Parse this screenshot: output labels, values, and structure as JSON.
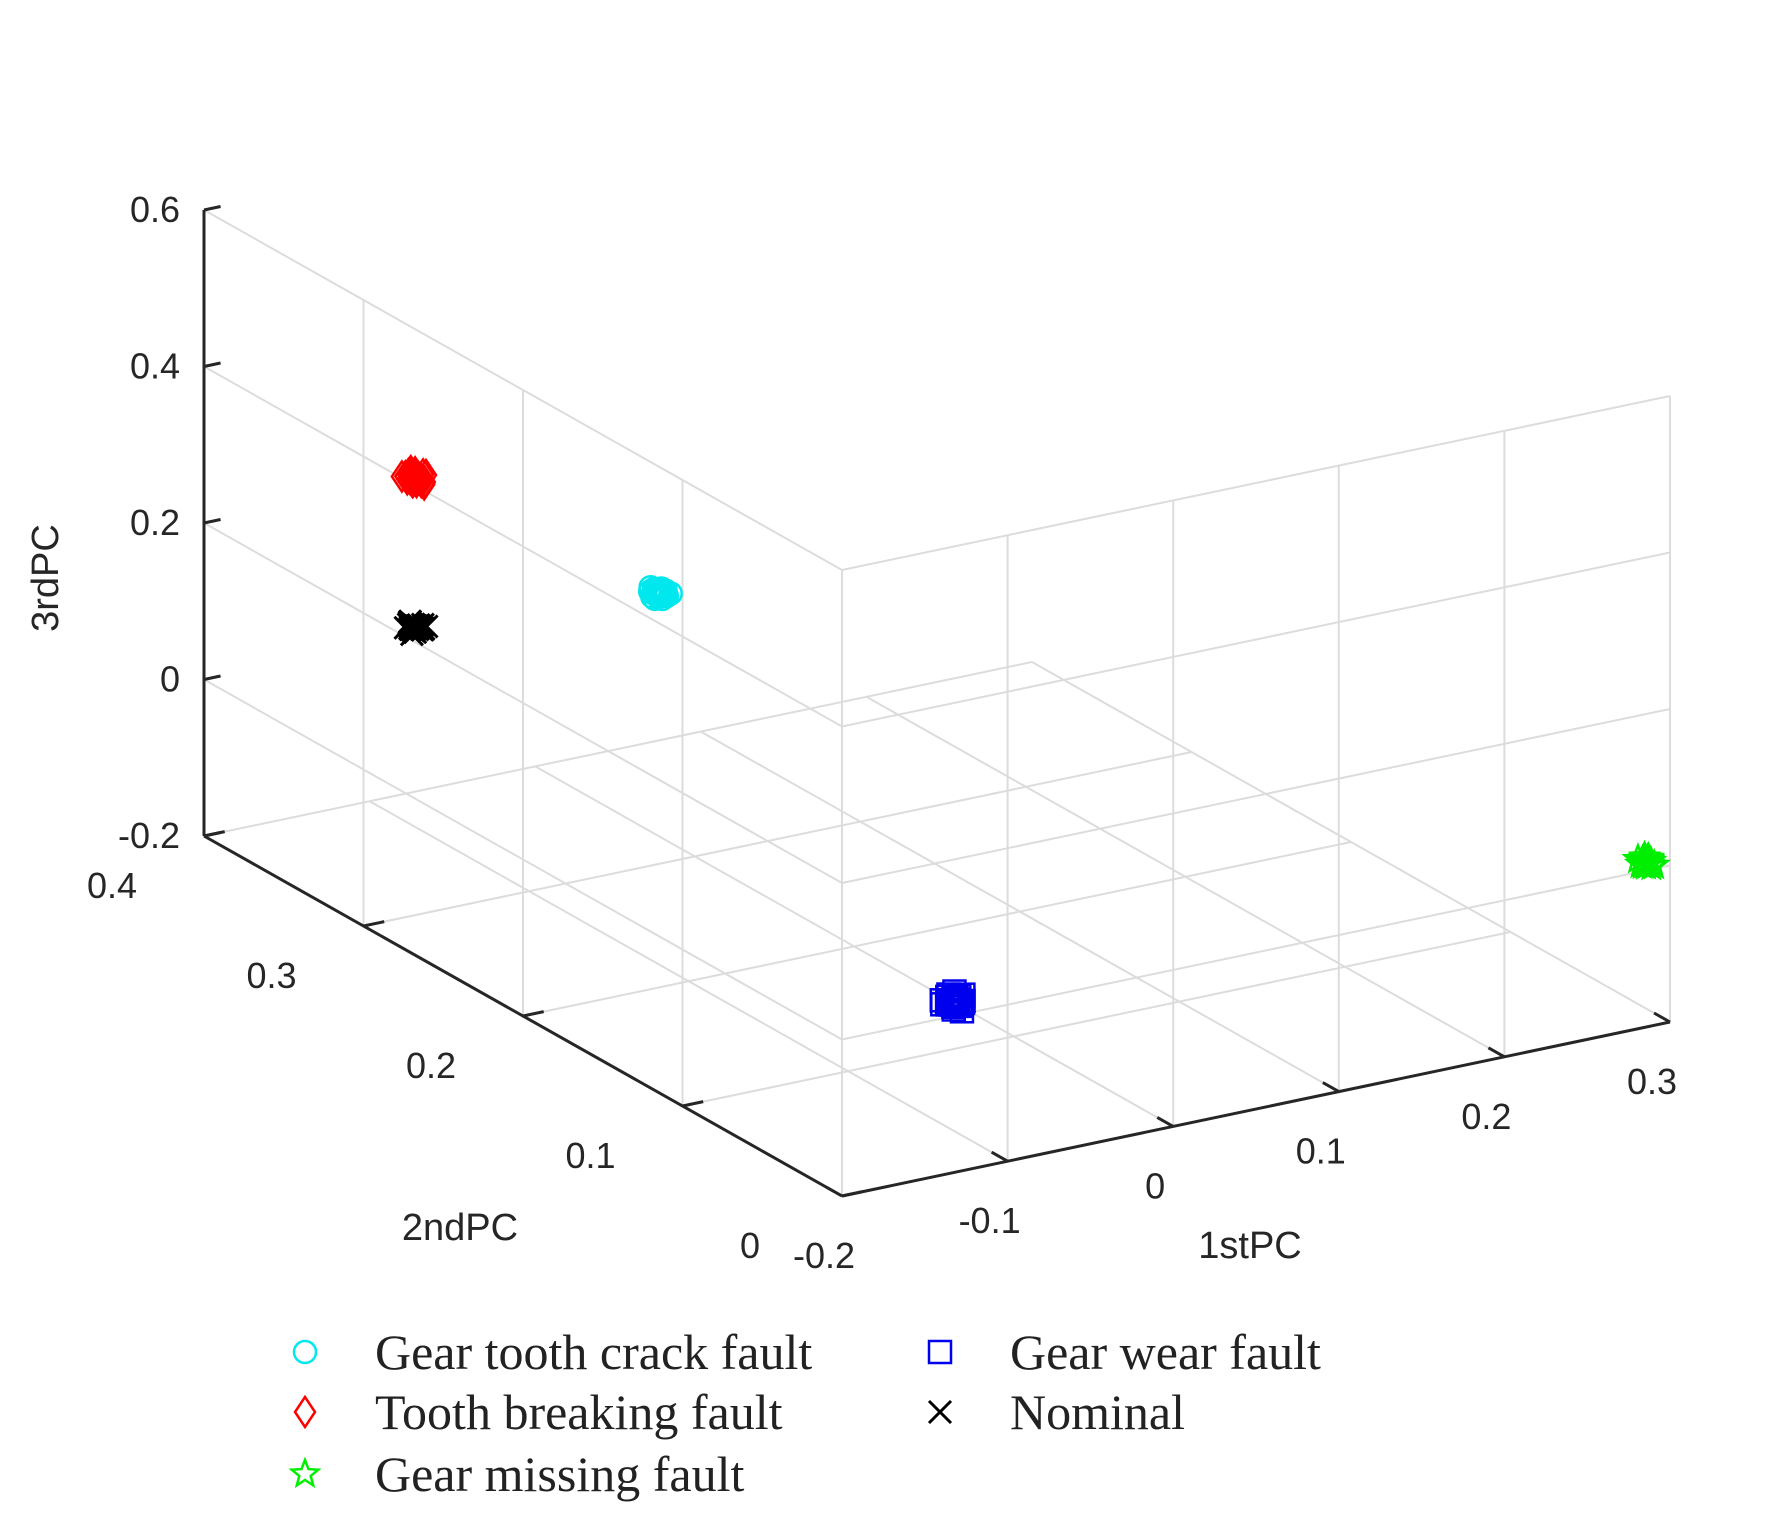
{
  "chart_data": {
    "type": "scatter",
    "projection": "3d",
    "title": "",
    "xlabel": "1stPC",
    "ylabel": "2ndPC",
    "zlabel": "3rdPC",
    "xlim": [
      -0.2,
      0.3
    ],
    "ylim": [
      0,
      0.4
    ],
    "zlim": [
      -0.2,
      0.6
    ],
    "xticks": [
      "-0.2",
      "-0.1",
      "0",
      "0.1",
      "0.2",
      "0.3"
    ],
    "yticks": [
      "0",
      "0.1",
      "0.2",
      "0.3",
      "0.4"
    ],
    "zticks": [
      "-0.2",
      "0",
      "0.2",
      "0.4",
      "0.6"
    ],
    "grid": true,
    "legend_position": "bottom",
    "series": [
      {
        "name": "Gear tooth crack fault",
        "marker": "circle",
        "color": "#00e8ee",
        "center": [
          -0.195,
          0.12,
          0.43
        ],
        "spread": [
          0.006,
          0.006,
          0.008
        ],
        "count": 40
      },
      {
        "name": "Gear wear fault",
        "marker": "square",
        "color": "#0000ee",
        "center": [
          -0.06,
          0.075,
          -0.1
        ],
        "spread": [
          0.006,
          0.006,
          0.012
        ],
        "count": 35
      },
      {
        "name": "Tooth breaking  fault",
        "marker": "diamond",
        "color": "#ff0000",
        "center": [
          -0.12,
          0.35,
          0.28
        ],
        "spread": [
          0.006,
          0.008,
          0.008
        ],
        "count": 40
      },
      {
        "name": "Nominal",
        "marker": "x",
        "color": "#000000",
        "center": [
          -0.062,
          0.41,
          -0.006
        ],
        "spread": [
          0.006,
          0.006,
          0.009
        ],
        "count": 40
      },
      {
        "name": "Gear missing fault",
        "marker": "star",
        "color": "#00ee00",
        "center": [
          0.286,
          0.0,
          0.011
        ],
        "spread": [
          0.005,
          0.004,
          0.007
        ],
        "count": 30
      }
    ]
  }
}
